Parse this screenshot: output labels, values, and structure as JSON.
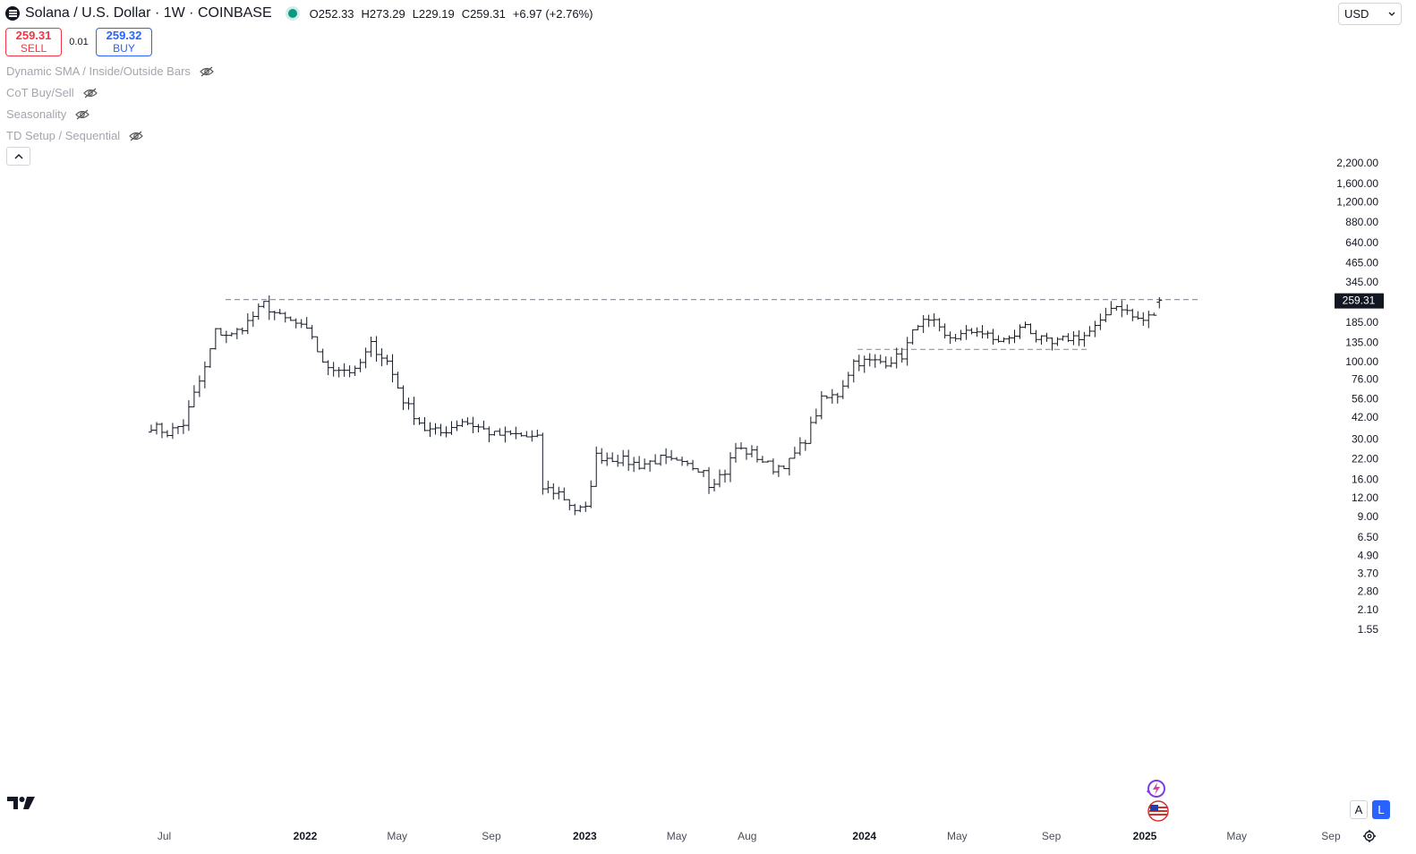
{
  "header": {
    "symbol_title": "Solana / U.S. Dollar · 1W · COINBASE",
    "ohlc": {
      "open_label": "O",
      "open": "252.33",
      "high_label": "H",
      "high": "273.29",
      "low_label": "L",
      "low": "229.19",
      "close_label": "C",
      "close": "259.31",
      "change": "+6.97 (+2.76%)"
    },
    "status_color": "#089981"
  },
  "trade": {
    "sell_price": "259.31",
    "sell_label": "SELL",
    "spread": "0.01",
    "buy_price": "259.32",
    "buy_label": "BUY",
    "sell_color": "#f23645",
    "buy_color": "#2962ff"
  },
  "indicators": [
    {
      "label": "Dynamic SMA / Inside/Outside Bars",
      "icon": "eye-hidden-icon"
    },
    {
      "label": "CoT Buy/Sell",
      "icon": "eye-hidden-icon"
    },
    {
      "label": "Seasonality",
      "icon": "eye-hidden-icon"
    },
    {
      "label": "TD Setup / Sequential",
      "icon": "eye-hidden-icon"
    }
  ],
  "currency_select": {
    "value": "USD"
  },
  "scale_buttons": {
    "auto": "A",
    "log": "L"
  },
  "chart_data": {
    "type": "ohlc-bar",
    "scale": "log",
    "ylim": [
      1.2,
      2600
    ],
    "price_axis_labels": [
      "2,200.00",
      "1,600.00",
      "1,200.00",
      "880.00",
      "640.00",
      "465.00",
      "345.00",
      "185.00",
      "135.00",
      "100.00",
      "76.00",
      "56.00",
      "42.00",
      "30.00",
      "22.00",
      "16.00",
      "12.00",
      "9.00",
      "6.50",
      "4.90",
      "3.70",
      "2.80",
      "2.10",
      "1.55"
    ],
    "time_axis_labels": [
      "Jul",
      "2022",
      "May",
      "Sep",
      "2023",
      "May",
      "Aug",
      "2024",
      "May",
      "Sep",
      "2025",
      "May",
      "Sep"
    ],
    "bold_time_labels": [
      "2022",
      "2023",
      "2024",
      "2025"
    ],
    "last_price": "259.31",
    "last_price_label_bg": "#131722",
    "bar_color": "#131722",
    "horizontal_lines": [
      {
        "price": 263,
        "style": "dashed"
      },
      {
        "price": 121,
        "style": "dashed"
      }
    ],
    "close_path": [
      [
        "2021-06-14",
        37
      ],
      [
        "2021-07-05",
        33
      ],
      [
        "2021-07-26",
        38
      ],
      [
        "2021-08-09",
        60
      ],
      [
        "2021-08-23",
        90
      ],
      [
        "2021-09-06",
        160
      ],
      [
        "2021-09-27",
        150
      ],
      [
        "2021-10-18",
        185
      ],
      [
        "2021-11-08",
        245
      ],
      [
        "2021-11-29",
        200
      ],
      [
        "2021-12-20",
        180
      ],
      [
        "2022-01-10",
        150
      ],
      [
        "2022-01-24",
        95
      ],
      [
        "2022-02-14",
        90
      ],
      [
        "2022-03-07",
        85
      ],
      [
        "2022-03-28",
        130
      ],
      [
        "2022-04-18",
        100
      ],
      [
        "2022-05-09",
        55
      ],
      [
        "2022-06-06",
        35
      ],
      [
        "2022-06-27",
        33
      ],
      [
        "2022-07-25",
        40
      ],
      [
        "2022-08-15",
        36
      ],
      [
        "2022-09-05",
        32
      ],
      [
        "2022-10-03",
        32
      ],
      [
        "2022-10-31",
        30
      ],
      [
        "2022-11-07",
        14
      ],
      [
        "2022-11-28",
        13
      ],
      [
        "2022-12-19",
        10
      ],
      [
        "2023-01-02",
        10
      ],
      [
        "2023-01-16",
        23
      ],
      [
        "2023-02-13",
        22
      ],
      [
        "2023-03-13",
        20
      ],
      [
        "2023-04-10",
        22
      ],
      [
        "2023-05-08",
        20
      ],
      [
        "2023-06-05",
        19
      ],
      [
        "2023-06-12",
        15
      ],
      [
        "2023-07-03",
        18
      ],
      [
        "2023-07-17",
        26
      ],
      [
        "2023-08-07",
        24
      ],
      [
        "2023-09-04",
        19
      ],
      [
        "2023-09-25",
        21
      ],
      [
        "2023-10-16",
        30
      ],
      [
        "2023-11-06",
        55
      ],
      [
        "2023-11-27",
        60
      ],
      [
        "2023-12-18",
        100
      ],
      [
        "2024-01-08",
        100
      ],
      [
        "2024-01-29",
        100
      ],
      [
        "2024-02-19",
        110
      ],
      [
        "2024-03-11",
        185
      ],
      [
        "2024-04-01",
        180
      ],
      [
        "2024-04-15",
        145
      ],
      [
        "2024-05-06",
        150
      ],
      [
        "2024-05-27",
        165
      ],
      [
        "2024-06-17",
        140
      ],
      [
        "2024-07-08",
        140
      ],
      [
        "2024-07-29",
        180
      ],
      [
        "2024-08-12",
        145
      ],
      [
        "2024-09-02",
        130
      ],
      [
        "2024-09-23",
        145
      ],
      [
        "2024-10-14",
        150
      ],
      [
        "2024-11-04",
        180
      ],
      [
        "2024-11-18",
        240
      ],
      [
        "2024-12-02",
        235
      ],
      [
        "2024-12-16",
        200
      ],
      [
        "2024-12-30",
        190
      ],
      [
        "2025-01-13",
        210
      ],
      [
        "2025-01-20",
        259.31
      ]
    ]
  }
}
